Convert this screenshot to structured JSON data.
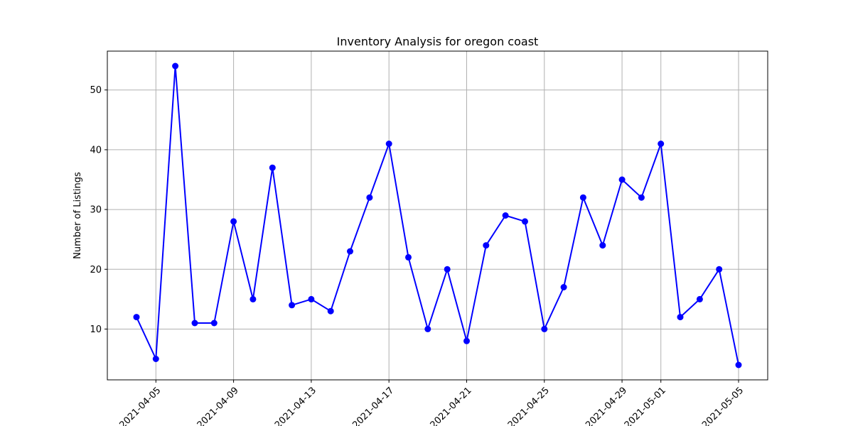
{
  "chart_data": {
    "type": "line",
    "title": "Inventory Analysis for oregon coast",
    "xlabel": "",
    "ylabel": "Number of Listings",
    "x": [
      "2021-04-04",
      "2021-04-05",
      "2021-04-06",
      "2021-04-07",
      "2021-04-08",
      "2021-04-09",
      "2021-04-10",
      "2021-04-11",
      "2021-04-12",
      "2021-04-13",
      "2021-04-14",
      "2021-04-15",
      "2021-04-16",
      "2021-04-17",
      "2021-04-18",
      "2021-04-19",
      "2021-04-20",
      "2021-04-21",
      "2021-04-22",
      "2021-04-23",
      "2021-04-24",
      "2021-04-25",
      "2021-04-26",
      "2021-04-27",
      "2021-04-28",
      "2021-04-29",
      "2021-04-30",
      "2021-05-01",
      "2021-05-02",
      "2021-05-03",
      "2021-05-04",
      "2021-05-05"
    ],
    "values": [
      12,
      5,
      54,
      11,
      11,
      28,
      15,
      37,
      14,
      15,
      13,
      23,
      32,
      41,
      22,
      10,
      20,
      8,
      24,
      29,
      28,
      10,
      17,
      32,
      24,
      35,
      32,
      41,
      12,
      15,
      20,
      4
    ],
    "xlim": [
      "2021-04-02 12:00",
      "2021-05-06 12:00"
    ],
    "ylim": [
      1.5,
      56.5
    ],
    "xticks": [
      "2021-04-05",
      "2021-04-09",
      "2021-04-13",
      "2021-04-17",
      "2021-04-21",
      "2021-04-25",
      "2021-04-29",
      "2021-05-01",
      "2021-05-05"
    ],
    "yticks": [
      10,
      20,
      30,
      40,
      50
    ],
    "grid": true,
    "line_color": "#0000ff",
    "marker": "circle"
  }
}
